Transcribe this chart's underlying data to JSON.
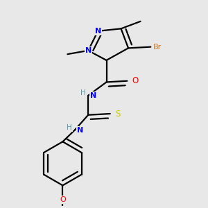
{
  "background_color": "#e8e8e8",
  "bond_color": "#000000",
  "atom_colors": {
    "N": "#0000ff",
    "O": "#ff0000",
    "S": "#cccc00",
    "Br": "#cc7722",
    "H_label": "#5599aa",
    "C": "#000000"
  },
  "figsize": [
    3.0,
    3.0
  ],
  "dpi": 100
}
